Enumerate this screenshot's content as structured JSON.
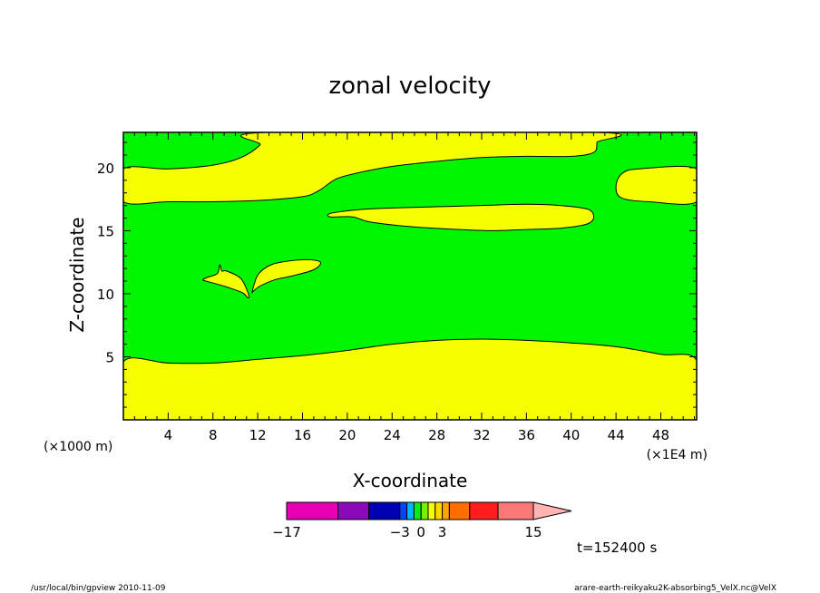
{
  "chart_data": {
    "type": "contour",
    "title": "zonal velocity",
    "xlabel": "X-coordinate",
    "ylabel": "Z-coordinate",
    "x_unit_left": "(×1000 m)",
    "x_unit_right": "(×1E4 m)",
    "xticks": [
      4,
      8,
      12,
      16,
      20,
      24,
      28,
      32,
      36,
      40,
      44,
      48
    ],
    "yticks": [
      5,
      10,
      15,
      20
    ],
    "xlim": [
      0,
      51.2
    ],
    "ylim": [
      0,
      22.8
    ],
    "grid": false,
    "fill_colors": {
      "positive": "#f5ff00",
      "negative": "#00f500",
      "outline": "#000000"
    },
    "regions": [
      {
        "sign": "positive",
        "boundary": [
          [
            0,
            0
          ],
          [
            51.2,
            0
          ],
          [
            51.2,
            4.7
          ],
          [
            48,
            5.2
          ],
          [
            44,
            5.8
          ],
          [
            40,
            6.1
          ],
          [
            36,
            6.3
          ],
          [
            32,
            6.4
          ],
          [
            28,
            6.3
          ],
          [
            24,
            6.0
          ],
          [
            20,
            5.5
          ],
          [
            16,
            5.1
          ],
          [
            12,
            4.8
          ],
          [
            8,
            4.5
          ],
          [
            4,
            4.5
          ],
          [
            0,
            4.6
          ]
        ]
      },
      {
        "sign": "positive",
        "boundary": [
          [
            0,
            17.3
          ],
          [
            4,
            17.3
          ],
          [
            8,
            17.3
          ],
          [
            12,
            17.4
          ],
          [
            16,
            17.7
          ],
          [
            17.5,
            18.2
          ],
          [
            19,
            19.1
          ],
          [
            21,
            19.6
          ],
          [
            24,
            20.1
          ],
          [
            28,
            20.5
          ],
          [
            32,
            20.8
          ],
          [
            36,
            20.9
          ],
          [
            40,
            20.9
          ],
          [
            42,
            21.2
          ],
          [
            42.3,
            22.0
          ],
          [
            42.3,
            22.8
          ],
          [
            12.8,
            22.8
          ],
          [
            12.2,
            21.8
          ],
          [
            10.5,
            20.8
          ],
          [
            8,
            20.2
          ],
          [
            4,
            19.9
          ],
          [
            0,
            19.9
          ]
        ]
      },
      {
        "sign": "positive",
        "boundary": [
          [
            51.2,
            17.3
          ],
          [
            47,
            17.3
          ],
          [
            44.5,
            17.6
          ],
          [
            44.0,
            18.5
          ],
          [
            44.5,
            19.5
          ],
          [
            46,
            19.9
          ],
          [
            51.2,
            19.9
          ]
        ]
      },
      {
        "sign": "positive",
        "boundary": [
          [
            20.5,
            16.1
          ],
          [
            22,
            15.7
          ],
          [
            26,
            15.3
          ],
          [
            30,
            15.1
          ],
          [
            33,
            15.0
          ],
          [
            36,
            15.1
          ],
          [
            39,
            15.2
          ],
          [
            41.3,
            15.5
          ],
          [
            42,
            16.0
          ],
          [
            41.5,
            16.7
          ],
          [
            39,
            17.0
          ],
          [
            36,
            17.1
          ],
          [
            32,
            17.0
          ],
          [
            28,
            16.9
          ],
          [
            24,
            16.8
          ],
          [
            21.5,
            16.7
          ],
          [
            18.6,
            16.4
          ],
          [
            18.5,
            16.1
          ]
        ]
      },
      {
        "sign": "positive",
        "boundary": [
          [
            11.1,
            9.7
          ],
          [
            10.6,
            10.1
          ],
          [
            9.0,
            10.6
          ],
          [
            7.4,
            11.0
          ],
          [
            7.1,
            11.1
          ],
          [
            7.5,
            11.3
          ],
          [
            8.4,
            11.6
          ],
          [
            8.6,
            12.3
          ],
          [
            8.8,
            11.8
          ],
          [
            9.2,
            11.8
          ],
          [
            10.5,
            11.2
          ],
          [
            11.2,
            9.9
          ]
        ]
      },
      {
        "sign": "positive",
        "boundary": [
          [
            11.5,
            10.1
          ],
          [
            11.7,
            10.8
          ],
          [
            12.1,
            11.6
          ],
          [
            13.2,
            12.3
          ],
          [
            14.8,
            12.6
          ],
          [
            16.5,
            12.7
          ],
          [
            17.6,
            12.5
          ],
          [
            17.0,
            11.9
          ],
          [
            15.0,
            11.4
          ],
          [
            13.5,
            11.1
          ],
          [
            12.2,
            10.6
          ],
          [
            11.6,
            10.2
          ]
        ]
      }
    ],
    "colorbar": {
      "colors": [
        "#e600b4",
        "#8a0aba",
        "#0000b3",
        "#0046ff",
        "#00b4ff",
        "#00f01e",
        "#78f000",
        "#f5ff00",
        "#ffd700",
        "#ffa500",
        "#ff6e00",
        "#ff1e1e",
        "#fa7878",
        "#ffb4b4"
      ],
      "levels": [
        -17,
        -12,
        -9,
        -3,
        -2,
        -1,
        0,
        1,
        2,
        3,
        5,
        8,
        11,
        15
      ],
      "tick_labels": [
        {
          "value": -17,
          "text": "−17"
        },
        {
          "value": -3,
          "text": "−3"
        },
        {
          "value": 0,
          "text": "0"
        },
        {
          "value": 3,
          "text": "3"
        },
        {
          "value": 15,
          "text": "15"
        }
      ]
    },
    "time_label": "t=152400 s",
    "footer_left": "/usr/local/bin/gpview   2010-11-09",
    "footer_right": "arare-earth-reikyaku2K-absorbing5_VelX.nc@VelX"
  }
}
